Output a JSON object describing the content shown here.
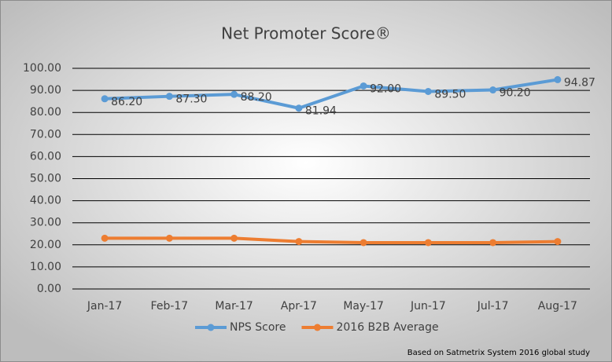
{
  "chart_data": {
    "type": "line",
    "title": "Net Promoter Score®",
    "categories": [
      "Jan-17",
      "Feb-17",
      "Mar-17",
      "Apr-17",
      "May-17",
      "Jun-17",
      "Jul-17",
      "Aug-17"
    ],
    "series": [
      {
        "name": "NPS Score",
        "color": "#5b9bd5",
        "values": [
          86.2,
          87.3,
          88.2,
          81.94,
          92,
          89.5,
          90.2,
          94.87
        ],
        "value_labels": [
          "86.20",
          "87.30",
          "88.20",
          "81.94",
          "92.00",
          "89.50",
          "90.20",
          "94.87"
        ]
      },
      {
        "name": "2016 B2B Average",
        "color": "#ed7d31",
        "values": [
          23,
          23,
          23,
          21.5,
          21,
          21,
          21,
          21.5
        ]
      }
    ],
    "ylim": [
      0,
      100
    ],
    "yticks": [
      {
        "value": 0,
        "label": "0.00"
      },
      {
        "value": 10,
        "label": "10.00"
      },
      {
        "value": 20,
        "label": "20.00"
      },
      {
        "value": 30,
        "label": "30.00"
      },
      {
        "value": 40,
        "label": "40.00"
      },
      {
        "value": 50,
        "label": "50.00"
      },
      {
        "value": 60,
        "label": "60.00"
      },
      {
        "value": 70,
        "label": "70.00"
      },
      {
        "value": 80,
        "label": "80.00"
      },
      {
        "value": 90,
        "label": "90.00"
      },
      {
        "value": 100,
        "label": "100.00"
      }
    ],
    "grid": true,
    "legend": "bottom",
    "note": "Based on Satmetrix System 2016 global study"
  }
}
